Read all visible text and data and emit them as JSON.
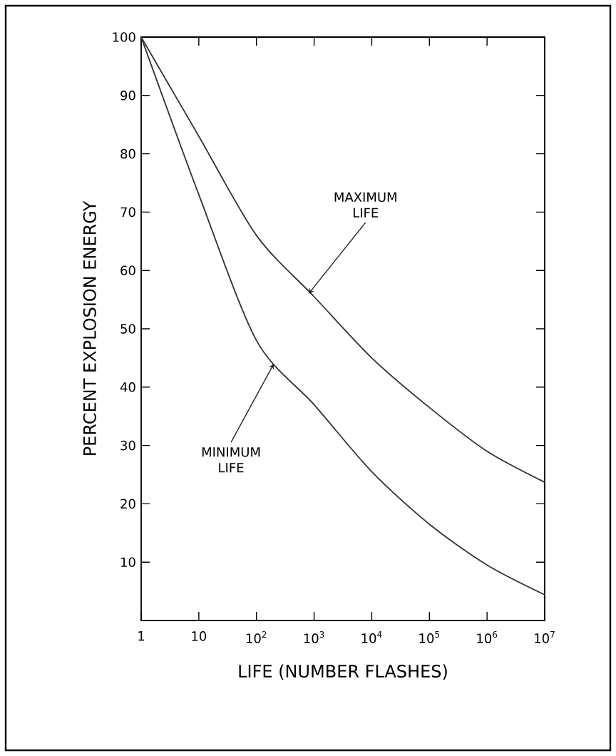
{
  "chart_data": {
    "type": "line",
    "xlabel": "LIFE (NUMBER FLASHES)",
    "ylabel": "PERCENT EXPLOSION ENERGY",
    "log": "x",
    "xlim": [
      1,
      10000000
    ],
    "ylim": [
      0,
      100
    ],
    "xticks": [
      1,
      10,
      {
        "value": 100,
        "label": "10$^{2}$"
      },
      {
        "value": 1000,
        "label": "10$^{3}$"
      },
      {
        "value": 10000,
        "label": "10$^{4}$"
      },
      {
        "value": 100000,
        "label": "10$^{5}$"
      },
      {
        "value": 1000000,
        "label": "10$^{6}$"
      },
      {
        "value": 10000000,
        "label": "10$^{7}$"
      }
    ],
    "yticks": [
      10,
      20,
      30,
      40,
      50,
      60,
      70,
      80,
      90,
      100
    ],
    "x": [
      1,
      10,
      100,
      1000,
      10000,
      100000,
      1000000,
      10000000
    ],
    "series": [
      {
        "color": "#333333",
        "values": [
          100,
          83,
          66,
          55.5,
          45,
          36.5,
          29,
          23.7
        ]
      },
      {
        "color": "#333333",
        "values": [
          100,
          73,
          48,
          37,
          25.5,
          16.5,
          9.5,
          4.4
        ]
      }
    ],
    "annotations": [
      {
        "text": "MAXIMUM LIFE",
        "x": 800,
        "y": 56
      },
      {
        "text": "MINIMUM LIFE",
        "x": 200,
        "y": 44
      }
    ],
    "marker": "none",
    "line_style": "solid"
  }
}
